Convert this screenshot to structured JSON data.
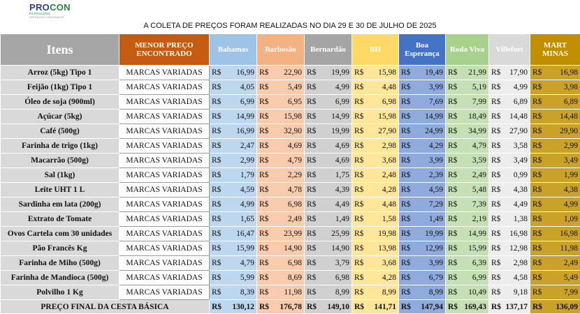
{
  "logo": {
    "line1_a": "PRO",
    "line1_b": "CON",
    "line2": "PATROCÍNIO",
    "line3": "DEFESA DO CONSUMIDOR"
  },
  "caption": "A COLETA DE PREÇOS FORAM REALIZADAS NO DIA 29 E 30 DE JULHO DE 2025",
  "colors": {
    "bahamas": "#bdd7ee",
    "barbosao": "#f8cbad",
    "bernardao": "#d0d0d0",
    "bh": "#ffe699",
    "boa_esperanca": "#8faadc",
    "roda_viva": "#c5e0b4",
    "villefort": "#ededed",
    "mart_minas": "#c9a227"
  },
  "headers": {
    "itens": "Itens",
    "menor": "MENOR PREÇO ENCONTRADO",
    "stores": [
      "Bahamas",
      "Barbosão",
      "Bernardão",
      "BH",
      "Boa Esperança",
      "Roda Viva",
      "Villefort",
      "MART MINAS"
    ]
  },
  "currency": "R$",
  "rows": [
    {
      "item": "Arroz (5kg) Tipo 1",
      "menor": "MARCAS VARIADAS",
      "prices": [
        "16,99",
        "22,90",
        "19,99",
        "15,98",
        "19,49",
        "21,99",
        "17,90",
        "16,98"
      ]
    },
    {
      "item": "Feijão (1kg) Tipo 1",
      "menor": "MARCAS VARIADAS",
      "prices": [
        "4,05",
        "5,49",
        "4,99",
        "4,48",
        "3,99",
        "5,19",
        "4,99",
        "3,98"
      ]
    },
    {
      "item": "Óleo de soja (900ml)",
      "menor": "MARCAS VARIADAS",
      "prices": [
        "6,99",
        "6,95",
        "6,99",
        "6,98",
        "7,69",
        "7,99",
        "6,89",
        "6,89"
      ]
    },
    {
      "item": "Açúcar (5kg)",
      "menor": "MARCAS VARIADAS",
      "prices": [
        "14,99",
        "15,98",
        "14,99",
        "15,98",
        "14,99",
        "18,49",
        "14,48",
        "14,48"
      ]
    },
    {
      "item": "Café (500g)",
      "menor": "MARCAS VARIADAS",
      "prices": [
        "16,99",
        "32,90",
        "19,99",
        "27,90",
        "24,99",
        "34,99",
        "27,90",
        "29,90"
      ]
    },
    {
      "item": "Farinha de trigo (1kg)",
      "menor": "MARCAS VARIADAS",
      "prices": [
        "2,47",
        "4,69",
        "4,69",
        "2,98",
        "4,29",
        "4,79",
        "3,58",
        "2,99"
      ]
    },
    {
      "item": "Macarrão (500g)",
      "menor": "MARCAS VARIADAS",
      "prices": [
        "2,99",
        "4,79",
        "4,69",
        "3,68",
        "3,99",
        "3,59",
        "3,49",
        "3,49"
      ]
    },
    {
      "item": "Sal (1kg)",
      "menor": "MARCAS VARIADAS",
      "prices": [
        "1,79",
        "2,29",
        "1,75",
        "2,48",
        "2,39",
        "2,49",
        "0,99",
        "1,99"
      ]
    },
    {
      "item": "Leite UHT 1 L",
      "menor": "MARCAS VARIADAS",
      "prices": [
        "4,59",
        "4,78",
        "4,39",
        "4,28",
        "4,59",
        "5,48",
        "4,38",
        "4,38"
      ]
    },
    {
      "item": "Sardinha em lata (200g)",
      "menor": "MARCAS VARIADAS",
      "prices": [
        "4,99",
        "6,98",
        "4,49",
        "4,48",
        "7,29",
        "7,39",
        "4,49",
        "4,99"
      ]
    },
    {
      "item": "Extrato de Tomate",
      "menor": "MARCAS VARIADAS",
      "prices": [
        "1,65",
        "2,49",
        "1,49",
        "1,58",
        "1,49",
        "2,19",
        "1,38",
        "1,09"
      ]
    },
    {
      "item": "Ovos Cartela com 30 unidades",
      "menor": "MARCAS VARIADAS",
      "prices": [
        "16,47",
        "23,99",
        "25,99",
        "19,98",
        "19,99",
        "14,99",
        "16,98",
        "16,98"
      ]
    },
    {
      "item": "Pão Francês Kg",
      "menor": "MARCAS VARIADAS",
      "prices": [
        "15,99",
        "14,90",
        "14,90",
        "13,98",
        "12,99",
        "15,99",
        "12,98",
        "11,98"
      ]
    },
    {
      "item": "Farinha de Miho (500g)",
      "menor": "MARCAS VARIADAS",
      "prices": [
        "4,79",
        "6,98",
        "3,79",
        "3,68",
        "3,99",
        "6,39",
        "2,98",
        "2,49"
      ]
    },
    {
      "item": "Farinha de Mandioca (500g)",
      "menor": "MARCAS VARIADAS",
      "prices": [
        "5,99",
        "8,69",
        "6,98",
        "4,28",
        "6,79",
        "6,99",
        "4,58",
        "5,49"
      ]
    },
    {
      "item": "Polvilho 1 Kg",
      "menor": "MARCAS VARIADAS",
      "prices": [
        "8,39",
        "11,98",
        "8,99",
        "8,99",
        "8,99",
        "10,49",
        "9,18",
        "7,99"
      ]
    }
  ],
  "total": {
    "label": "PREÇO FINAL DA CESTA BÁSICA",
    "values": [
      "130,12",
      "176,78",
      "149,10",
      "141,71",
      "147,94",
      "169,43",
      "137,17",
      "136,09"
    ]
  }
}
